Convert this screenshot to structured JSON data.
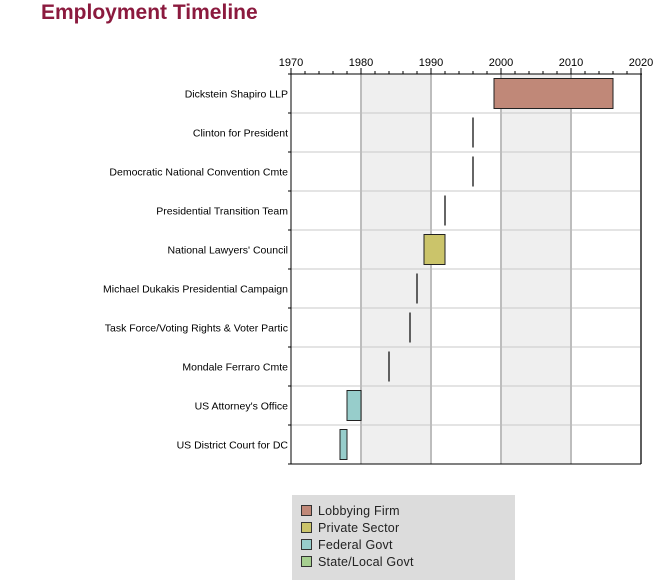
{
  "title": "Employment Timeline",
  "chart_data": {
    "type": "gantt",
    "title": "Employment Timeline",
    "x_axis": {
      "min": 1970,
      "max": 2020,
      "ticks": [
        1970,
        1980,
        1990,
        2000,
        2010,
        2020
      ],
      "position": "top"
    },
    "shaded_decades": [
      [
        1980,
        1990
      ],
      [
        2000,
        2010
      ]
    ],
    "categories": [
      "Dickstein Shapiro LLP",
      "Clinton for President",
      "Democratic National Convention Cmte",
      "Presidential Transition Team",
      "National Lawyers' Council",
      "Michael Dukakis Presidential Campaign",
      "Task Force/Voting Rights & Voter Partic",
      "Mondale Ferraro Cmte",
      "US Attorney's Office",
      "US District Court for DC"
    ],
    "bars": [
      {
        "label": "Dickstein Shapiro LLP",
        "start": 1999,
        "end": 2016,
        "category": "Lobbying Firm"
      },
      {
        "label": "Clinton for President",
        "start": 1996,
        "end": 1996,
        "category": ""
      },
      {
        "label": "Democratic National Convention Cmte",
        "start": 1996,
        "end": 1996,
        "category": ""
      },
      {
        "label": "Presidential Transition Team",
        "start": 1992,
        "end": 1992,
        "category": ""
      },
      {
        "label": "National Lawyers' Council",
        "start": 1989,
        "end": 1992,
        "category": "Private Sector"
      },
      {
        "label": "Michael Dukakis Presidential Campaign",
        "start": 1988,
        "end": 1988,
        "category": ""
      },
      {
        "label": "Task Force/Voting Rights & Voter Partic",
        "start": 1987,
        "end": 1987,
        "category": ""
      },
      {
        "label": "Mondale Ferraro Cmte",
        "start": 1984,
        "end": 1984,
        "category": ""
      },
      {
        "label": "US Attorney's Office",
        "start": 1978,
        "end": 1980,
        "category": "Federal Govt"
      },
      {
        "label": "US District Court for DC",
        "start": 1977,
        "end": 1978,
        "category": "Federal Govt"
      }
    ],
    "legend": [
      {
        "name": "Lobbying Firm",
        "color": "#c08878"
      },
      {
        "name": "Private Sector",
        "color": "#cbc46a"
      },
      {
        "name": "Federal Govt",
        "color": "#97cdcb"
      },
      {
        "name": "State/Local Govt",
        "color": "#a6cf90"
      }
    ],
    "legend_position": "bottom"
  }
}
